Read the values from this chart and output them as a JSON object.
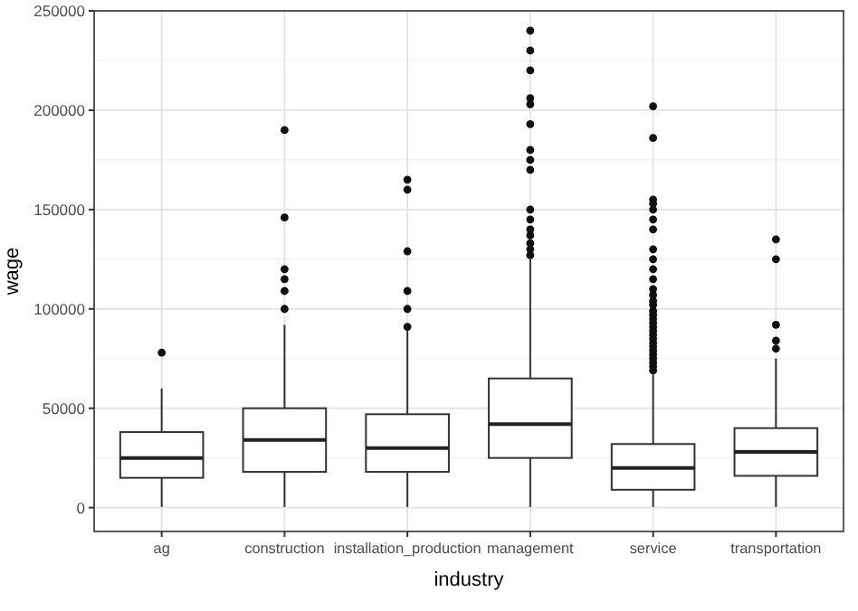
{
  "chart_data": {
    "type": "box",
    "xlabel": "industry",
    "ylabel": "wage",
    "categories": [
      "ag",
      "construction",
      "installation_production",
      "management",
      "service",
      "transportation"
    ],
    "ylim": [
      -12000,
      250000
    ],
    "yticks": [
      0,
      50000,
      100000,
      150000,
      200000,
      250000
    ],
    "grid": true,
    "boxes": [
      {
        "low": 300,
        "q1": 15000,
        "median": 25000,
        "q3": 38000,
        "high": 60000,
        "outliers": [
          78000
        ]
      },
      {
        "low": 300,
        "q1": 18000,
        "median": 34000,
        "q3": 50000,
        "high": 92000,
        "outliers": [
          100000,
          109000,
          115000,
          120000,
          146000,
          190000
        ]
      },
      {
        "low": 300,
        "q1": 18000,
        "median": 30000,
        "q3": 47000,
        "high": 89000,
        "outliers": [
          91000,
          100000,
          109000,
          129000,
          160000,
          165000
        ]
      },
      {
        "low": 300,
        "q1": 25000,
        "median": 42000,
        "q3": 65000,
        "high": 125000,
        "outliers": [
          127000,
          130000,
          133000,
          137000,
          140000,
          145000,
          150000,
          170000,
          175000,
          180000,
          193000,
          203000,
          206000,
          220000,
          230000,
          240000
        ]
      },
      {
        "low": 300,
        "q1": 9000,
        "median": 20000,
        "q3": 32000,
        "high": 67000,
        "outliers": [
          69000,
          71000,
          73000,
          75000,
          77000,
          79000,
          81000,
          83000,
          85000,
          87000,
          89000,
          91000,
          93000,
          95000,
          97000,
          99000,
          102000,
          104000,
          107000,
          110000,
          115000,
          120000,
          125000,
          130000,
          140000,
          145000,
          150000,
          153000,
          155000,
          186000,
          202000
        ]
      },
      {
        "low": 300,
        "q1": 16000,
        "median": 28000,
        "q3": 40000,
        "high": 75000,
        "outliers": [
          80000,
          84000,
          92000,
          125000,
          135000
        ]
      }
    ]
  }
}
